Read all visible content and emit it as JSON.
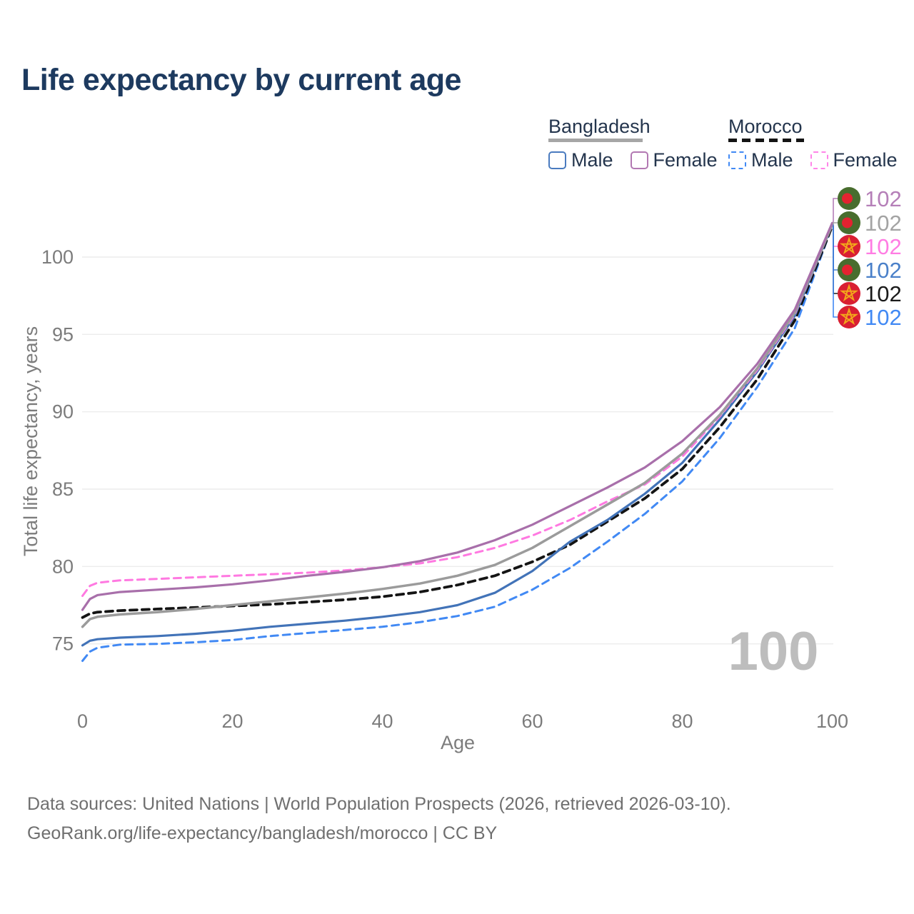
{
  "title": "Life expectancy by current age",
  "legend": {
    "groups": [
      {
        "country": "Bangladesh",
        "line_color": "#a6a6a6",
        "line_style": "solid",
        "items": [
          {
            "label": "Male",
            "color": "#4a7bbf",
            "style": "solid"
          },
          {
            "label": "Female",
            "color": "#b278b2",
            "style": "solid"
          }
        ]
      },
      {
        "country": "Morocco",
        "line_color": "#141414",
        "line_style": "dashed",
        "items": [
          {
            "label": "Male",
            "color": "#4189f4",
            "style": "dashed"
          },
          {
            "label": "Female",
            "color": "#ff85e8",
            "style": "dashed"
          }
        ]
      }
    ]
  },
  "chart_data": {
    "type": "line",
    "title": "Life expectancy by current age",
    "xlabel": "Age",
    "ylabel": "Total life expectancy, years",
    "xticks": [
      0,
      20,
      40,
      60,
      80,
      100
    ],
    "yticks": [
      75,
      80,
      85,
      90,
      95,
      100
    ],
    "xlim": [
      0,
      100
    ],
    "ylim": [
      73,
      103
    ],
    "grid": "horizontal",
    "legend_position": "top-right",
    "watermark": "100",
    "ages": [
      0,
      1,
      2,
      5,
      10,
      15,
      20,
      25,
      30,
      35,
      40,
      45,
      50,
      55,
      60,
      65,
      70,
      75,
      80,
      85,
      90,
      95,
      100
    ],
    "series": [
      {
        "id": "bangladesh-female",
        "name": "Bangladesh Female",
        "country": "Bangladesh",
        "sex": "Female",
        "color": "#a86faa",
        "dash": "solid",
        "width": 3.2,
        "label_color": "#b57fb8",
        "flag": "bangladesh",
        "end_value": "102",
        "values": [
          77.2,
          77.9,
          78.15,
          78.35,
          78.5,
          78.65,
          78.85,
          79.1,
          79.4,
          79.65,
          79.95,
          80.35,
          80.9,
          81.7,
          82.7,
          83.9,
          85.1,
          86.4,
          88.1,
          90.3,
          93.1,
          96.6,
          102.2
        ]
      },
      {
        "id": "bangladesh-both",
        "name": "Bangladesh",
        "country": "Bangladesh",
        "sex": "Both",
        "color": "#9b9b9b",
        "dash": "solid",
        "width": 3.5,
        "label_color": "#a3a3a3",
        "flag": "bangladesh",
        "end_value": "102",
        "values": [
          76.1,
          76.6,
          76.75,
          76.9,
          77.05,
          77.25,
          77.5,
          77.75,
          78.0,
          78.25,
          78.55,
          78.9,
          79.4,
          80.1,
          81.2,
          82.6,
          84.0,
          85.4,
          87.3,
          89.8,
          92.8,
          96.4,
          102.1
        ]
      },
      {
        "id": "morocco-female",
        "name": "Morocco Female",
        "country": "Morocco",
        "sex": "Female",
        "color": "#ff79e1",
        "dash": "dashed",
        "width": 3.0,
        "label_color": "#ff7ce3",
        "flag": "morocco",
        "end_value": "102",
        "values": [
          78.1,
          78.75,
          78.95,
          79.1,
          79.2,
          79.3,
          79.4,
          79.5,
          79.6,
          79.75,
          79.95,
          80.2,
          80.6,
          81.2,
          82.0,
          83.0,
          84.2,
          85.3,
          87.1,
          89.7,
          92.7,
          96.3,
          102.1
        ]
      },
      {
        "id": "bangladesh-male",
        "name": "Bangladesh Male",
        "country": "Bangladesh",
        "sex": "Male",
        "color": "#4273b8",
        "dash": "solid",
        "width": 3.2,
        "label_color": "#4a80c9",
        "flag": "bangladesh",
        "end_value": "102",
        "values": [
          74.9,
          75.2,
          75.3,
          75.4,
          75.5,
          75.65,
          75.85,
          76.1,
          76.3,
          76.5,
          76.75,
          77.05,
          77.5,
          78.3,
          79.7,
          81.6,
          83.0,
          84.7,
          86.7,
          89.5,
          92.6,
          96.2,
          102.1
        ]
      },
      {
        "id": "morocco-both",
        "name": "Morocco",
        "country": "Morocco",
        "sex": "Both",
        "color": "#141414",
        "dash": "dashed",
        "width": 3.8,
        "label_color": "#1a1a1a",
        "flag": "morocco",
        "end_value": "102",
        "values": [
          76.7,
          76.95,
          77.05,
          77.15,
          77.25,
          77.35,
          77.45,
          77.55,
          77.7,
          77.85,
          78.05,
          78.35,
          78.8,
          79.4,
          80.3,
          81.4,
          82.9,
          84.4,
          86.3,
          89.0,
          92.1,
          95.9,
          102.0
        ]
      },
      {
        "id": "morocco-male",
        "name": "Morocco Male",
        "country": "Morocco",
        "sex": "Male",
        "color": "#4189f4",
        "dash": "dashed",
        "width": 3.0,
        "label_color": "#4189f4",
        "flag": "morocco",
        "end_value": "102",
        "values": [
          73.9,
          74.5,
          74.75,
          74.95,
          75.0,
          75.1,
          75.25,
          75.5,
          75.7,
          75.9,
          76.1,
          76.4,
          76.8,
          77.4,
          78.5,
          79.9,
          81.6,
          83.4,
          85.5,
          88.3,
          91.6,
          95.4,
          102.0
        ]
      }
    ],
    "flag_colors": {
      "bangladesh_green": "#486d2e",
      "bangladesh_red": "#e32330",
      "morocco_red": "#d91f32",
      "morocco_star_gold": "#f2a71b"
    }
  },
  "footer": {
    "line1": "Data sources: United Nations | World Population Prospects (2026, retrieved 2026-03-10).",
    "line2": "GeoRank.org/life-expectancy/bangladesh/morocco | CC BY"
  }
}
